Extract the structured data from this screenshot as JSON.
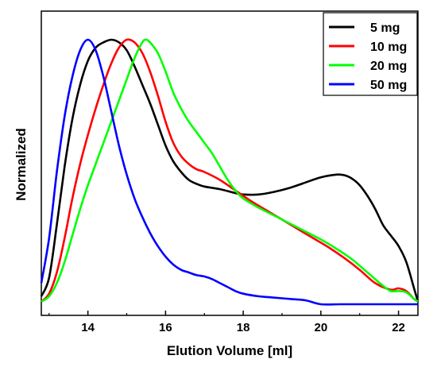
{
  "chart_data": {
    "type": "line",
    "xlabel": "Elution Volume [ml]",
    "ylabel": "Normalized",
    "xlim": [
      12.8,
      22.5
    ],
    "ylim": [
      0,
      1.05
    ],
    "x_ticks": [
      14,
      16,
      18,
      20,
      22
    ],
    "x_tick_labels": [
      "14",
      "16",
      "18",
      "20",
      "22"
    ],
    "y_ticks_shown": false,
    "grid": false,
    "legend_position": "top-right",
    "series": [
      {
        "name": "5 mg",
        "color": "#000000",
        "points": [
          [
            12.8,
            0.03
          ],
          [
            13.0,
            0.1
          ],
          [
            13.2,
            0.3
          ],
          [
            13.4,
            0.52
          ],
          [
            13.6,
            0.7
          ],
          [
            13.8,
            0.83
          ],
          [
            14.0,
            0.92
          ],
          [
            14.2,
            0.97
          ],
          [
            14.4,
            0.99
          ],
          [
            14.6,
            1.0
          ],
          [
            14.8,
            0.99
          ],
          [
            15.0,
            0.96
          ],
          [
            15.2,
            0.9
          ],
          [
            15.4,
            0.83
          ],
          [
            15.6,
            0.76
          ],
          [
            15.8,
            0.68
          ],
          [
            16.0,
            0.6
          ],
          [
            16.2,
            0.54
          ],
          [
            16.4,
            0.5
          ],
          [
            16.6,
            0.47
          ],
          [
            16.8,
            0.455
          ],
          [
            17.0,
            0.445
          ],
          [
            17.4,
            0.435
          ],
          [
            17.8,
            0.42
          ],
          [
            18.0,
            0.415
          ],
          [
            18.4,
            0.415
          ],
          [
            18.8,
            0.425
          ],
          [
            19.2,
            0.44
          ],
          [
            19.6,
            0.46
          ],
          [
            20.0,
            0.48
          ],
          [
            20.4,
            0.49
          ],
          [
            20.6,
            0.488
          ],
          [
            20.8,
            0.475
          ],
          [
            21.0,
            0.45
          ],
          [
            21.2,
            0.41
          ],
          [
            21.4,
            0.36
          ],
          [
            21.6,
            0.3
          ],
          [
            21.8,
            0.26
          ],
          [
            22.0,
            0.22
          ],
          [
            22.2,
            0.16
          ],
          [
            22.4,
            0.06
          ],
          [
            22.5,
            0.01
          ]
        ]
      },
      {
        "name": "10 mg",
        "color": "#ff0000",
        "points": [
          [
            12.8,
            0.01
          ],
          [
            13.0,
            0.04
          ],
          [
            13.2,
            0.12
          ],
          [
            13.4,
            0.25
          ],
          [
            13.6,
            0.4
          ],
          [
            13.8,
            0.53
          ],
          [
            14.0,
            0.64
          ],
          [
            14.2,
            0.74
          ],
          [
            14.4,
            0.83
          ],
          [
            14.6,
            0.91
          ],
          [
            14.8,
            0.97
          ],
          [
            15.0,
            1.0
          ],
          [
            15.2,
            0.99
          ],
          [
            15.4,
            0.95
          ],
          [
            15.6,
            0.88
          ],
          [
            15.8,
            0.79
          ],
          [
            16.0,
            0.69
          ],
          [
            16.2,
            0.61
          ],
          [
            16.4,
            0.56
          ],
          [
            16.6,
            0.53
          ],
          [
            16.8,
            0.51
          ],
          [
            17.0,
            0.5
          ],
          [
            17.4,
            0.47
          ],
          [
            17.8,
            0.43
          ],
          [
            18.2,
            0.39
          ],
          [
            18.6,
            0.355
          ],
          [
            19.0,
            0.32
          ],
          [
            19.4,
            0.285
          ],
          [
            19.8,
            0.25
          ],
          [
            20.2,
            0.215
          ],
          [
            20.6,
            0.175
          ],
          [
            21.0,
            0.13
          ],
          [
            21.4,
            0.08
          ],
          [
            21.8,
            0.055
          ],
          [
            22.0,
            0.06
          ],
          [
            22.2,
            0.05
          ],
          [
            22.4,
            0.02
          ],
          [
            22.5,
            0.01
          ]
        ]
      },
      {
        "name": "20 mg",
        "color": "#00ff00",
        "points": [
          [
            12.8,
            0.01
          ],
          [
            13.0,
            0.03
          ],
          [
            13.2,
            0.08
          ],
          [
            13.4,
            0.16
          ],
          [
            13.6,
            0.26
          ],
          [
            13.8,
            0.36
          ],
          [
            14.0,
            0.45
          ],
          [
            14.2,
            0.53
          ],
          [
            14.4,
            0.61
          ],
          [
            14.6,
            0.69
          ],
          [
            14.8,
            0.77
          ],
          [
            15.0,
            0.85
          ],
          [
            15.2,
            0.93
          ],
          [
            15.4,
            0.99
          ],
          [
            15.5,
            1.0
          ],
          [
            15.6,
            0.99
          ],
          [
            15.8,
            0.95
          ],
          [
            16.0,
            0.88
          ],
          [
            16.2,
            0.8
          ],
          [
            16.4,
            0.74
          ],
          [
            16.6,
            0.69
          ],
          [
            16.8,
            0.65
          ],
          [
            17.0,
            0.61
          ],
          [
            17.2,
            0.57
          ],
          [
            17.4,
            0.52
          ],
          [
            17.6,
            0.47
          ],
          [
            17.8,
            0.43
          ],
          [
            18.0,
            0.4
          ],
          [
            18.4,
            0.365
          ],
          [
            18.8,
            0.335
          ],
          [
            19.2,
            0.305
          ],
          [
            19.6,
            0.275
          ],
          [
            20.0,
            0.245
          ],
          [
            20.4,
            0.21
          ],
          [
            20.8,
            0.17
          ],
          [
            21.2,
            0.12
          ],
          [
            21.6,
            0.07
          ],
          [
            21.8,
            0.05
          ],
          [
            22.0,
            0.05
          ],
          [
            22.2,
            0.045
          ],
          [
            22.4,
            0.02
          ],
          [
            22.5,
            0.01
          ]
        ]
      },
      {
        "name": "50 mg",
        "color": "#0000ff",
        "points": [
          [
            12.8,
            0.08
          ],
          [
            13.0,
            0.25
          ],
          [
            13.2,
            0.5
          ],
          [
            13.4,
            0.71
          ],
          [
            13.6,
            0.86
          ],
          [
            13.8,
            0.96
          ],
          [
            14.0,
            1.0
          ],
          [
            14.2,
            0.96
          ],
          [
            14.4,
            0.86
          ],
          [
            14.6,
            0.73
          ],
          [
            14.8,
            0.6
          ],
          [
            15.0,
            0.49
          ],
          [
            15.2,
            0.4
          ],
          [
            15.4,
            0.33
          ],
          [
            15.6,
            0.27
          ],
          [
            15.8,
            0.22
          ],
          [
            16.0,
            0.18
          ],
          [
            16.2,
            0.15
          ],
          [
            16.4,
            0.13
          ],
          [
            16.6,
            0.12
          ],
          [
            16.8,
            0.11
          ],
          [
            17.0,
            0.105
          ],
          [
            17.2,
            0.095
          ],
          [
            17.4,
            0.08
          ],
          [
            17.6,
            0.065
          ],
          [
            17.8,
            0.05
          ],
          [
            18.0,
            0.04
          ],
          [
            18.4,
            0.03
          ],
          [
            18.8,
            0.025
          ],
          [
            19.2,
            0.02
          ],
          [
            19.6,
            0.015
          ],
          [
            20.0,
            0.0
          ],
          [
            20.5,
            0.0
          ],
          [
            21.0,
            0.0
          ],
          [
            21.5,
            0.0
          ],
          [
            22.0,
            0.0
          ],
          [
            22.5,
            0.0
          ]
        ]
      }
    ]
  }
}
